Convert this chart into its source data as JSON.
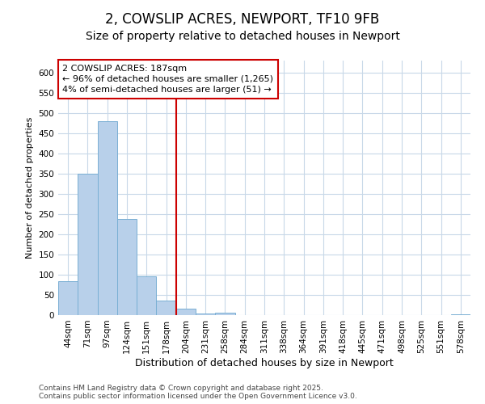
{
  "title1": "2, COWSLIP ACRES, NEWPORT, TF10 9FB",
  "title2": "Size of property relative to detached houses in Newport",
  "xlabel": "Distribution of detached houses by size in Newport",
  "ylabel": "Number of detached properties",
  "categories": [
    "44sqm",
    "71sqm",
    "97sqm",
    "124sqm",
    "151sqm",
    "178sqm",
    "204sqm",
    "231sqm",
    "258sqm",
    "284sqm",
    "311sqm",
    "338sqm",
    "364sqm",
    "391sqm",
    "418sqm",
    "445sqm",
    "471sqm",
    "498sqm",
    "525sqm",
    "551sqm",
    "578sqm"
  ],
  "values": [
    85,
    350,
    480,
    238,
    97,
    37,
    17,
    5,
    7,
    1,
    1,
    1,
    1,
    0,
    0,
    0,
    0,
    1,
    0,
    1,
    3
  ],
  "bar_color": "#b8d0ea",
  "bar_edge_color": "#7aafd4",
  "annotation_label": "2 COWSLIP ACRES: 187sqm",
  "annotation_line1": "← 96% of detached houses are smaller (1,265)",
  "annotation_line2": "4% of semi-detached houses are larger (51) →",
  "vline_color": "#cc0000",
  "vline_x_index": 5.5,
  "ylim": [
    0,
    630
  ],
  "yticks": [
    0,
    50,
    100,
    150,
    200,
    250,
    300,
    350,
    400,
    450,
    500,
    550,
    600
  ],
  "footnote1": "Contains HM Land Registry data © Crown copyright and database right 2025.",
  "footnote2": "Contains public sector information licensed under the Open Government Licence v3.0.",
  "bg_color": "#ffffff",
  "plot_bg_color": "#ffffff",
  "grid_color": "#c8d8e8",
  "title1_fontsize": 12,
  "title2_fontsize": 10,
  "xlabel_fontsize": 9,
  "ylabel_fontsize": 8,
  "tick_fontsize": 7.5,
  "annot_fontsize": 8,
  "footnote_fontsize": 6.5
}
